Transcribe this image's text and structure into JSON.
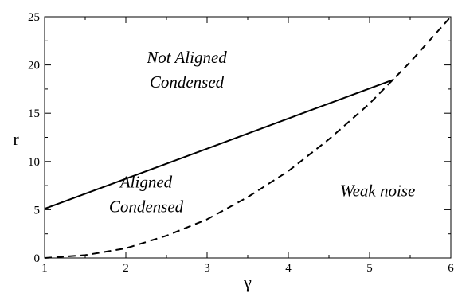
{
  "chart_data": {
    "type": "line",
    "xlabel": "γ",
    "ylabel": "r",
    "xlim": [
      1,
      6
    ],
    "ylim": [
      0,
      25
    ],
    "x_ticks": [
      1,
      2,
      3,
      4,
      5,
      6
    ],
    "y_ticks": [
      0,
      5,
      10,
      15,
      20,
      25
    ],
    "grid": false,
    "series": [
      {
        "style": "solid",
        "color": "#000000",
        "x": [
          1,
          5.3
        ],
        "y": [
          5.1,
          18.5
        ]
      },
      {
        "style": "dashed",
        "color": "#000000",
        "x": [
          1,
          1.5,
          2,
          2.5,
          3,
          3.5,
          4,
          4.5,
          5,
          5.5,
          6
        ],
        "y": [
          0,
          0.3,
          1.0,
          2.3,
          4.0,
          6.3,
          9.0,
          12.3,
          16.0,
          20.3,
          25.0
        ]
      }
    ],
    "annotations": [
      {
        "lines": [
          "Not Aligned",
          "Condensed"
        ],
        "x": 2.75,
        "y": 20.2
      },
      {
        "lines": [
          "Aligned",
          "Condensed"
        ],
        "x": 2.25,
        "y": 7.3
      },
      {
        "lines": [
          "Weak noise"
        ],
        "x": 5.1,
        "y": 6.4
      }
    ]
  }
}
